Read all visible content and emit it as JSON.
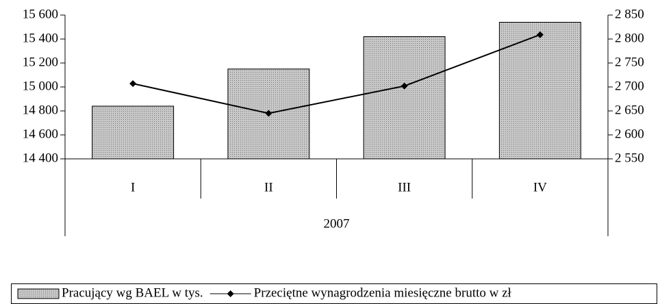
{
  "chart_data": {
    "type": "bar_line",
    "categories": [
      "I",
      "II",
      "III",
      "IV"
    ],
    "category_group": "2007",
    "series": [
      {
        "name": "Pracujący wg BAEL w tys.",
        "type": "bar",
        "color": "#c8c8c8",
        "axis": "y",
        "values": [
          14840,
          15150,
          15420,
          15540
        ]
      },
      {
        "name": "Przeciętne wynagrodzenia miesięczne brutto w zł",
        "type": "line",
        "color": "#000000",
        "axis": "y2",
        "values": [
          2707,
          2645,
          2702,
          2809
        ]
      }
    ],
    "ylim": [
      14400,
      15600
    ],
    "yticks": [
      {
        "value": 14400,
        "label": "14 400"
      },
      {
        "value": 14600,
        "label": "14 600"
      },
      {
        "value": 14800,
        "label": "14 800"
      },
      {
        "value": 15000,
        "label": "15 000"
      },
      {
        "value": 15200,
        "label": "15 200"
      },
      {
        "value": 15400,
        "label": "15 400"
      },
      {
        "value": 15600,
        "label": "15 600"
      }
    ],
    "y2lim": [
      2550,
      2850
    ],
    "y2ticks": [
      {
        "value": 2550,
        "label": "2 550"
      },
      {
        "value": 2600,
        "label": "2 600"
      },
      {
        "value": 2650,
        "label": "2 650"
      },
      {
        "value": 2700,
        "label": "2 700"
      },
      {
        "value": 2750,
        "label": "2 750"
      },
      {
        "value": 2800,
        "label": "2 800"
      },
      {
        "value": 2850,
        "label": "2 850"
      }
    ],
    "legend": "bottom"
  }
}
